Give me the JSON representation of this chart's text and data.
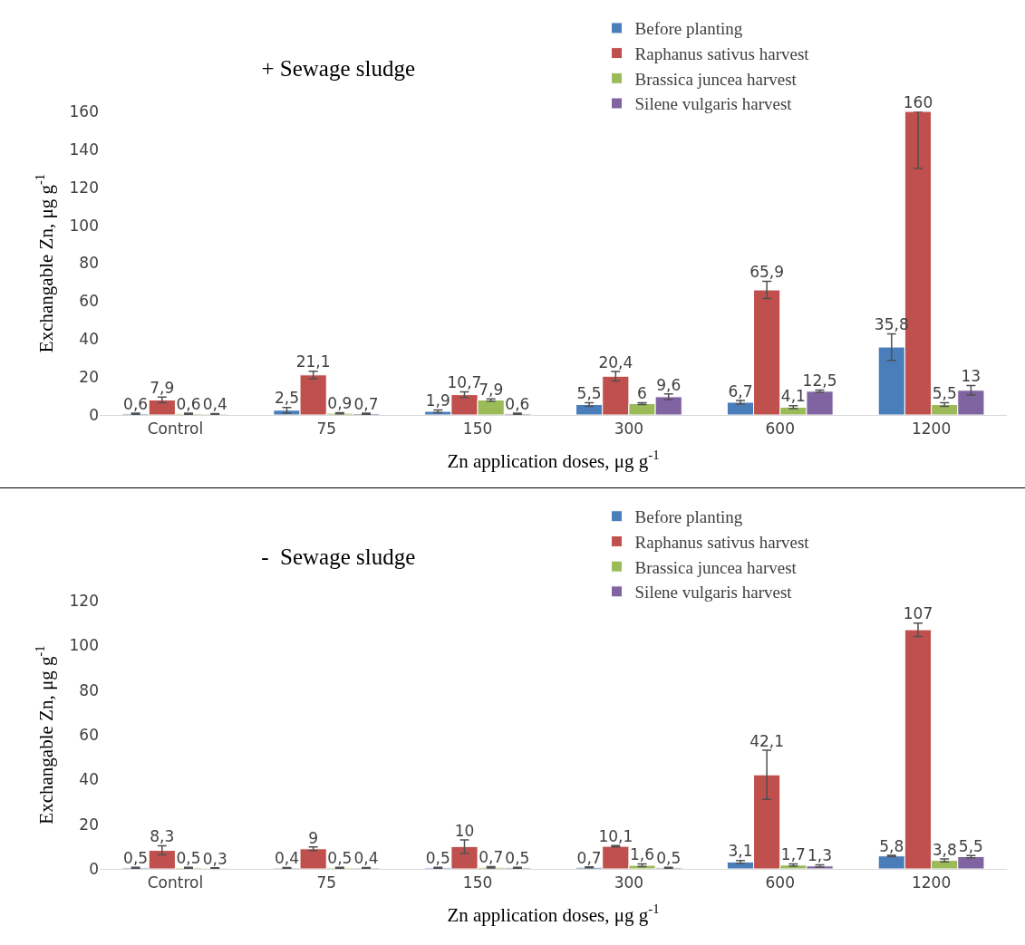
{
  "chart_data": [
    {
      "type": "bar",
      "title": "+ Sewage sludge",
      "xlabel": "Zn application doses, μg g$^{-1}$",
      "ylabel": "Exchangable Zn, μg g$^{-1}$",
      "categories": [
        "Control",
        "75",
        "150",
        "300",
        "600",
        "1200"
      ],
      "ylim": [
        0,
        160
      ],
      "yticks": [
        0,
        20,
        40,
        60,
        80,
        100,
        120,
        140,
        160
      ],
      "grid": false,
      "legend": "top right",
      "series": [
        {
          "name": "Before planting",
          "color": "#4a7ebb",
          "values": [
            0.6,
            2.5,
            1.9,
            5.5,
            6.7,
            35.8
          ],
          "value_labels": [
            "0,6",
            "2,5",
            "1,9",
            "5,5",
            "6,7",
            "35,8"
          ],
          "errors": [
            0.3,
            1.5,
            0.7,
            1,
            1,
            7
          ]
        },
        {
          "name": "Raphanus sativus harvest",
          "color": "#c0504d",
          "values": [
            7.9,
            21.1,
            10.7,
            20.4,
            65.9,
            160
          ],
          "value_labels": [
            "7,9",
            "21,1",
            "10,7",
            "20,4",
            "65,9",
            "160"
          ],
          "errors": [
            1.5,
            2,
            1.5,
            2.5,
            4.5,
            [
              130,
              160
            ]
          ]
        },
        {
          "name": "Brassica juncea harvest",
          "color": "#9bbb59",
          "values": [
            0.6,
            0.9,
            7.9,
            6,
            4.1,
            5.5
          ],
          "value_labels": [
            "0,6",
            "0,9",
            "7,9",
            "6",
            "4,1",
            "5,5"
          ],
          "errors": [
            0.3,
            0.3,
            0.6,
            0.5,
            0.8,
            1
          ]
        },
        {
          "name": "Silene vulgaris harvest",
          "color": "#8064a2",
          "values": [
            0.4,
            0.7,
            0.6,
            9.6,
            12.5,
            13
          ],
          "value_labels": [
            "0,4",
            "0,7",
            "0,6",
            "9,6",
            "12,5",
            "13"
          ],
          "errors": [
            0.3,
            0.3,
            0.3,
            1.5,
            0.6,
            2.5
          ]
        }
      ]
    },
    {
      "type": "bar",
      "title": "-  Sewage sludge",
      "xlabel": "Zn application doses, μg g$^{-1}$",
      "ylabel": "Exchangable Zn, μg g$^{-1}$",
      "categories": [
        "Control",
        "75",
        "150",
        "300",
        "600",
        "1200"
      ],
      "ylim": [
        0,
        120
      ],
      "yticks": [
        0,
        20,
        40,
        60,
        80,
        100,
        120
      ],
      "grid": false,
      "legend": "top right",
      "series": [
        {
          "name": "Before planting",
          "color": "#4a7ebb",
          "values": [
            0.5,
            0.4,
            0.5,
            0.7,
            3.1,
            5.8
          ],
          "value_labels": [
            "0,5",
            "0,4",
            "0,5",
            "0,7",
            "3,1",
            "5,8"
          ],
          "errors": [
            0.2,
            0.2,
            0.2,
            0.2,
            0.7,
            0.3
          ]
        },
        {
          "name": "Raphanus sativus harvest",
          "color": "#c0504d",
          "values": [
            8.3,
            9,
            10,
            10.1,
            42.1,
            107
          ],
          "value_labels": [
            "8,3",
            "9",
            "10",
            "10,1",
            "42,1",
            "107"
          ],
          "errors": [
            2,
            0.8,
            3,
            0.3,
            11,
            3
          ]
        },
        {
          "name": "Brassica juncea harvest",
          "color": "#9bbb59",
          "values": [
            0.5,
            0.5,
            0.7,
            1.6,
            1.7,
            3.8
          ],
          "value_labels": [
            "0,5",
            "0,5",
            "0,7",
            "1,6",
            "1,7",
            "3,8"
          ],
          "errors": [
            0.2,
            0.2,
            0.3,
            0.6,
            0.5,
            0.7
          ]
        },
        {
          "name": "Silene vulgaris harvest",
          "color": "#8064a2",
          "values": [
            0.3,
            0.4,
            0.5,
            0.5,
            1.3,
            5.5
          ],
          "value_labels": [
            "0,3",
            "0,4",
            "0,5",
            "0,5",
            "1,3",
            "5,5"
          ],
          "errors": [
            0.2,
            0.2,
            0.2,
            0.2,
            0.5,
            0.5
          ]
        }
      ]
    }
  ]
}
